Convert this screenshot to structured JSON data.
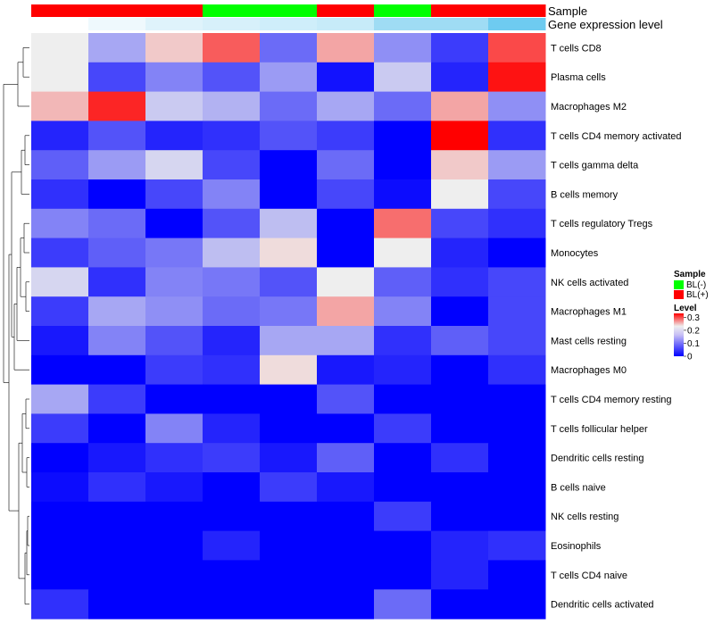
{
  "chart_data": {
    "type": "heatmap",
    "annotations": {
      "sample": {
        "label": "Sample",
        "values": [
          "BL(+)",
          "BL(+)",
          "BL(+)",
          "BL(-)",
          "BL(-)",
          "BL(+)",
          "BL(-)",
          "BL(+)",
          "BL(+)"
        ]
      },
      "expression": {
        "label": "Gene expression level",
        "values": [
          0.1,
          0.3,
          0.4,
          0.45,
          0.5,
          0.55,
          0.8,
          0.8,
          0.95
        ],
        "colors": [
          "#ffffff",
          "#eff9fd",
          "#dff3fb",
          "#d7f0fa",
          "#cfeefa",
          "#c7ebf9",
          "#9fdcf4",
          "#9fdcf4",
          "#6ecbf0"
        ]
      }
    },
    "rows": [
      "T cells CD8",
      "Plasma cells",
      "Macrophages M2",
      "T cells CD4 memory activated",
      "T cells gamma delta",
      "B cells memory",
      "T cells regulatory  Tregs",
      "Monocytes",
      "NK cells activated",
      "Macrophages M1",
      "Mast cells resting",
      "Macrophages M0",
      "T cells CD4 memory resting",
      "T cells follicular helper",
      "Dendritic cells resting",
      "B cells naive",
      "NK cells resting",
      "Eosinophils",
      "T cells CD4 naive",
      "Dendritic cells activated"
    ],
    "values": [
      [
        0.2,
        0.14,
        0.22,
        0.28,
        0.09,
        0.24,
        0.12,
        0.05,
        0.29
      ],
      [
        0.2,
        0.06,
        0.11,
        0.07,
        0.13,
        0.015,
        0.17,
        0.03,
        0.32
      ],
      [
        0.23,
        0.31,
        0.17,
        0.15,
        0.09,
        0.14,
        0.09,
        0.24,
        0.12
      ],
      [
        0.03,
        0.07,
        0.03,
        0.04,
        0.07,
        0.05,
        0.0,
        0.33,
        0.04
      ],
      [
        0.08,
        0.13,
        0.18,
        0.06,
        0.0,
        0.09,
        0.0,
        0.22,
        0.13
      ],
      [
        0.04,
        0.0,
        0.06,
        0.11,
        0.0,
        0.06,
        0.01,
        0.2,
        0.06
      ],
      [
        0.11,
        0.09,
        0.0,
        0.07,
        0.16,
        0.0,
        0.27,
        0.06,
        0.04
      ],
      [
        0.05,
        0.08,
        0.1,
        0.16,
        0.21,
        0.0,
        0.2,
        0.03,
        0.0
      ],
      [
        0.18,
        0.04,
        0.11,
        0.1,
        0.07,
        0.2,
        0.08,
        0.04,
        0.06
      ],
      [
        0.05,
        0.14,
        0.12,
        0.09,
        0.1,
        0.24,
        0.11,
        0.0,
        0.06
      ],
      [
        0.02,
        0.11,
        0.07,
        0.03,
        0.14,
        0.14,
        0.04,
        0.08,
        0.06
      ],
      [
        0.0,
        0.0,
        0.05,
        0.04,
        0.21,
        0.02,
        0.03,
        0.0,
        0.04
      ],
      [
        0.14,
        0.05,
        0.0,
        0.0,
        0.0,
        0.07,
        0.0,
        0.0,
        0.0
      ],
      [
        0.05,
        0.0,
        0.11,
        0.03,
        0.0,
        0.0,
        0.05,
        0.0,
        0.0
      ],
      [
        0.0,
        0.02,
        0.04,
        0.05,
        0.02,
        0.08,
        0.0,
        0.04,
        0.0
      ],
      [
        0.01,
        0.04,
        0.02,
        0.0,
        0.05,
        0.02,
        0.0,
        0.0,
        0.0
      ],
      [
        0.0,
        0.0,
        0.0,
        0.0,
        0.0,
        0.0,
        0.05,
        0.0,
        0.0
      ],
      [
        0.0,
        0.0,
        0.0,
        0.03,
        0.0,
        0.0,
        0.0,
        0.03,
        0.04
      ],
      [
        0.0,
        0.0,
        0.0,
        0.0,
        0.0,
        0.0,
        0.0,
        0.03,
        0.0
      ],
      [
        0.04,
        0.0,
        0.0,
        0.0,
        0.0,
        0.0,
        0.09,
        0.0,
        0.0
      ]
    ],
    "color_scale": {
      "low": "#0000ff",
      "mid": "#eeeeee",
      "high": "#ff0000",
      "min": 0,
      "mid_value": 0.2,
      "max": 0.33
    },
    "legend": {
      "placement": "right",
      "sample_title": "Sample",
      "sample_entries": [
        {
          "label": "BL(-)",
          "color": "#00ff00"
        },
        {
          "label": "BL(+)",
          "color": "#ff0000"
        }
      ],
      "level_title": "Level",
      "level_ticks": [
        {
          "label": "0.3",
          "value": 0.3
        },
        {
          "label": "0.2",
          "value": 0.2
        },
        {
          "label": "0.1",
          "value": 0.1
        },
        {
          "label": "0",
          "value": 0
        }
      ]
    },
    "dendrogram": "rows"
  }
}
